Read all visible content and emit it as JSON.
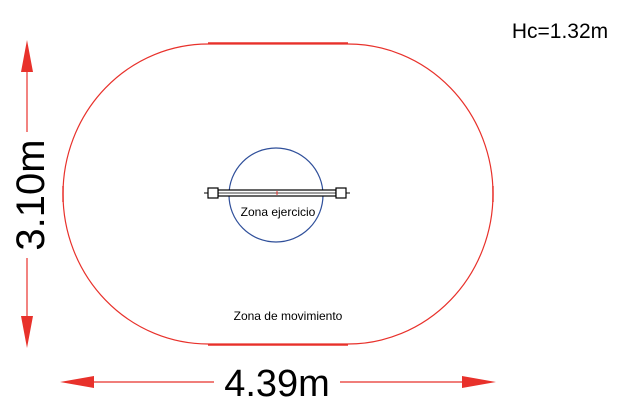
{
  "diagram": {
    "height_label": "Hc=1.32m",
    "vertical_dimension": "3.10m",
    "horizontal_dimension": "4.39m",
    "exercise_zone_label": "Zona ejercicio",
    "movement_zone_label": "Zona de movimiento"
  },
  "colors": {
    "movement_zone": "#e8312b",
    "exercise_zone": "#2f4f9a",
    "dimension_arrows": "#e8312b",
    "equipment": "#000000",
    "text": "#000000"
  }
}
